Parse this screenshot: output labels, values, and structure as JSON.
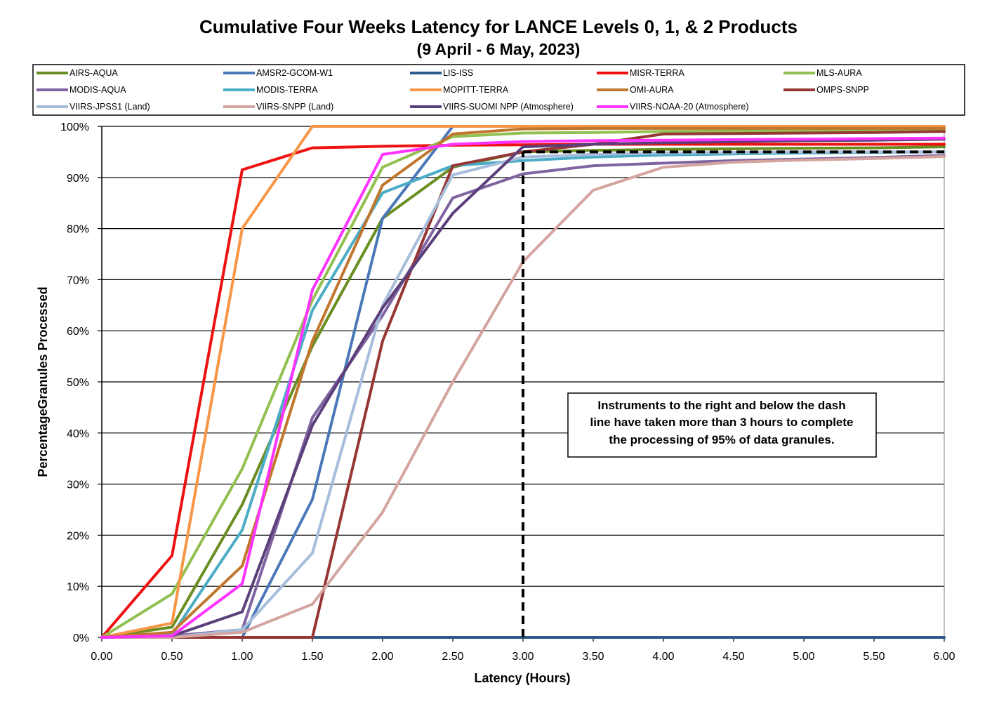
{
  "chart_data": {
    "type": "line",
    "title": "Cumulative Four Weeks Latency  for LANCE Levels 0, 1, & 2 Products",
    "subtitle": "(9  April  -  6  May,  2023)",
    "xlabel": "Latency (Hours)",
    "ylabel": "PercentageGranules Processed",
    "xlim": [
      0,
      6
    ],
    "ylim": [
      0,
      100
    ],
    "x_ticks": [
      "0.00",
      "0.50",
      "1.00",
      "1.50",
      "2.00",
      "2.50",
      "3.00",
      "3.50",
      "4.00",
      "4.50",
      "5.00",
      "5.50",
      "6.00"
    ],
    "y_ticks": [
      "0%",
      "10%",
      "20%",
      "30%",
      "40%",
      "50%",
      "60%",
      "70%",
      "80%",
      "90%",
      "100%"
    ],
    "grid": "horizontal",
    "legend_position": "top",
    "x": [
      0,
      0.5,
      1,
      1.5,
      2,
      2.5,
      3,
      3.5,
      4,
      4.5,
      5,
      5.5,
      6
    ],
    "series": [
      {
        "name": "AIRS-AQUA",
        "color": "#6B8E23",
        "values": [
          0,
          2,
          26,
          57,
          82,
          92,
          95,
          95.3,
          95.5,
          95.6,
          95.7,
          95.8,
          96
        ]
      },
      {
        "name": "AMSR2-GCOM-W1",
        "color": "#4A78B8",
        "values": [
          0,
          0,
          0,
          27,
          82,
          100,
          100,
          100,
          100,
          100,
          100,
          100,
          100
        ]
      },
      {
        "name": "LIS-ISS",
        "color": "#2E5C8A",
        "values": [
          0,
          0,
          0,
          0,
          0,
          0,
          0,
          0,
          0,
          0,
          0,
          0,
          0
        ]
      },
      {
        "name": "MISR-TERRA",
        "color": "#EE1111",
        "values": [
          0,
          16,
          91.5,
          95.8,
          96.1,
          96.3,
          96.4,
          96.5,
          96.5,
          96.5,
          96.5,
          96.5,
          96.5
        ]
      },
      {
        "name": "MLS-AURA",
        "color": "#92C050",
        "values": [
          0,
          8.5,
          33,
          66,
          92,
          98,
          98.7,
          98.8,
          99,
          99.1,
          99.1,
          99.2,
          99.2
        ]
      },
      {
        "name": "MODIS-AQUA",
        "color": "#8064A2",
        "values": [
          0,
          0.3,
          1.5,
          43,
          63,
          86,
          90.7,
          92.3,
          92.8,
          93.3,
          93.6,
          93.9,
          94.3
        ]
      },
      {
        "name": "MODIS-TERRA",
        "color": "#4BACC6",
        "values": [
          0,
          0.5,
          21,
          64,
          87,
          92.3,
          93.3,
          94,
          94.4,
          94.6,
          94.8,
          94.9,
          95
        ]
      },
      {
        "name": "MOPITT-TERRA",
        "color": "#F79646",
        "values": [
          0,
          2.8,
          80,
          100,
          100,
          100,
          100,
          100,
          100,
          100,
          100,
          100,
          100
        ]
      },
      {
        "name": "OMI-AURA",
        "color": "#C0772D",
        "values": [
          0,
          1,
          14,
          58,
          88.5,
          98.5,
          99.5,
          99.6,
          99.6,
          99.6,
          99.6,
          99.6,
          99.6
        ]
      },
      {
        "name": "OMPS-SNPP",
        "color": "#953735",
        "values": [
          0,
          0,
          0,
          0,
          58,
          92.3,
          95,
          96.5,
          98.5,
          98.6,
          98.7,
          98.8,
          99
        ]
      },
      {
        "name": "VIIRS-JPSS1 (Land)",
        "color": "#A6BDDB",
        "values": [
          0,
          0,
          1.5,
          16.5,
          65,
          90.5,
          94,
          94.5,
          94.8,
          94.9,
          95,
          95,
          95
        ]
      },
      {
        "name": "VIIRS-SNPP (Land)",
        "color": "#D4A5A0",
        "values": [
          0,
          0,
          1,
          6.5,
          24.5,
          50,
          73.5,
          87.5,
          92,
          93,
          93.4,
          93.7,
          94.1
        ]
      },
      {
        "name": "VIIRS-SUOMI NPP (Atmosphere)",
        "color": "#5B3F7A",
        "values": [
          0,
          0.3,
          5,
          41.5,
          64.5,
          83,
          96,
          96.5,
          96.8,
          97,
          97.2,
          97.3,
          97.5
        ]
      },
      {
        "name": "VIIRS-NOAA-20 (Atmosphere)",
        "color": "#FF33FF",
        "values": [
          0,
          0.3,
          10.5,
          68,
          94.5,
          96.5,
          97,
          97.2,
          97.3,
          97.4,
          97.5,
          97.6,
          97.7
        ]
      }
    ],
    "threshold_line": {
      "x": 3,
      "y": 95
    },
    "annotation": {
      "lines": [
        "Instruments to the right and below the dash",
        "line have taken more than 3 hours to complete",
        "the processing of 95% of data granules."
      ]
    }
  }
}
